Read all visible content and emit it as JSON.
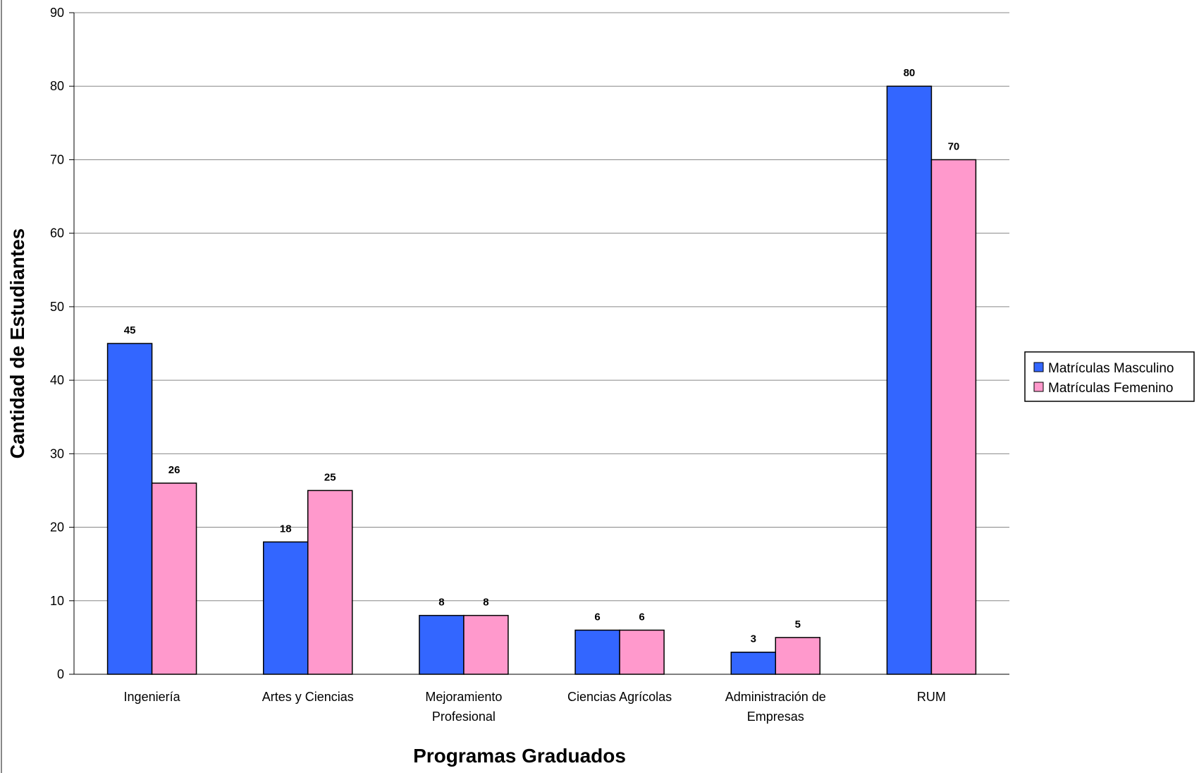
{
  "chart_data": {
    "type": "bar",
    "title": "",
    "xlabel": "Programas Graduados",
    "ylabel": "Cantidad de Estudiantes",
    "ylim": [
      0,
      90
    ],
    "ytick_step": 10,
    "grid": true,
    "legend_position": "right",
    "categories": [
      [
        "Ingeniería"
      ],
      [
        "Artes y Ciencias"
      ],
      [
        "Mejoramiento",
        "Profesional"
      ],
      [
        "Ciencias Agrícolas"
      ],
      [
        "Administración de",
        "Empresas"
      ],
      [
        "RUM"
      ]
    ],
    "series": [
      {
        "name": "Matrículas Masculino",
        "color": "#3366FF",
        "values": [
          45,
          18,
          8,
          6,
          3,
          80
        ]
      },
      {
        "name": "Matrículas Femenino",
        "color": "#FF99CC",
        "values": [
          26,
          25,
          8,
          6,
          5,
          70
        ]
      }
    ]
  }
}
